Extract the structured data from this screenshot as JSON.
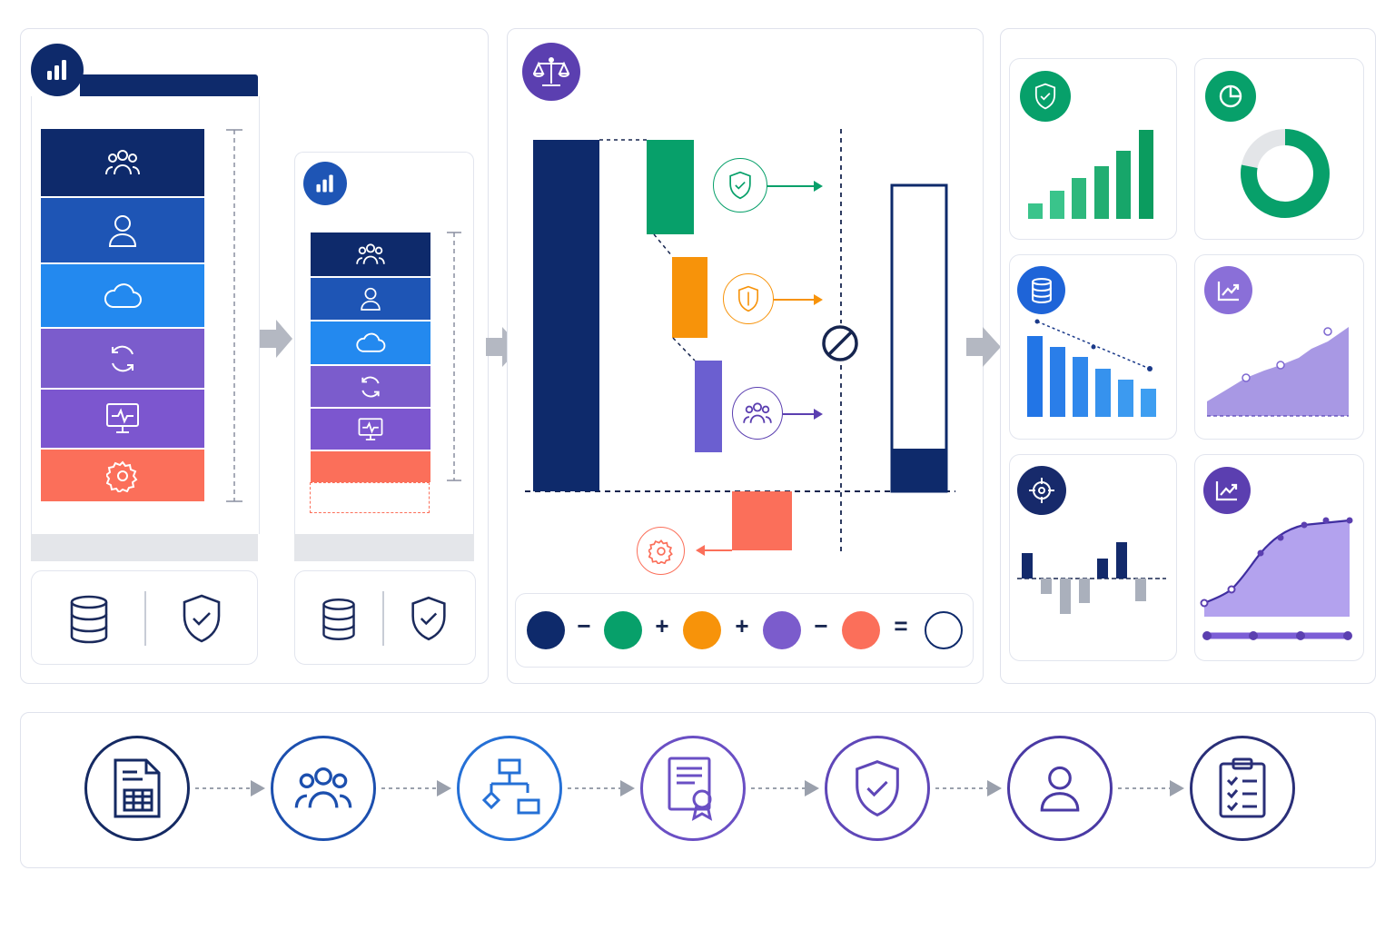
{
  "colors": {
    "navy": "#0e2a6b",
    "blue": "#1e55b5",
    "sky": "#2389ef",
    "violet": "#7b5ccc",
    "purple": "#7c56cf",
    "coral": "#fb6f5a",
    "green": "#07a06a",
    "orange": "#f7930a",
    "lavender": "#6b5fd0",
    "gray": "#e4e6ea",
    "arrow_gray": "#b4b8c2"
  },
  "left_panel": {
    "stack_layers": [
      {
        "icon": "users-icon",
        "color": "#0e2a6b"
      },
      {
        "icon": "user-icon",
        "color": "#1e55b5"
      },
      {
        "icon": "cloud-icon",
        "color": "#2389ef"
      },
      {
        "icon": "sync-icon",
        "color": "#7b5ccc"
      },
      {
        "icon": "monitor-pulse-icon",
        "color": "#7c56cf"
      },
      {
        "icon": "gear-icon",
        "color": "#fb6f5a"
      }
    ],
    "footer_icons": [
      "database-icon",
      "shield-check-icon"
    ]
  },
  "middle_panel": {
    "header_icon": "balance-scale-icon",
    "waterfall_markers": [
      "shield-check-icon",
      "shield-icon",
      "users-icon",
      "gear-icon"
    ],
    "blocked_icon": "no-entry-icon",
    "equation": {
      "operators": [
        "−",
        "+",
        "+",
        "−",
        "="
      ],
      "dot_colors": [
        "#0e2a6b",
        "#07a06a",
        "#f7930a",
        "#7b5ccc",
        "#fb6f5a",
        "#ffffff"
      ]
    }
  },
  "right_panel": {
    "cards": [
      {
        "icon": "shield-check-icon",
        "chart": "bar-growth"
      },
      {
        "icon": "pie-chart-icon",
        "chart": "donut"
      },
      {
        "icon": "database-icon",
        "chart": "bar-decline"
      },
      {
        "icon": "trend-icon",
        "chart": "area"
      },
      {
        "icon": "target-icon",
        "chart": "variance-bars"
      },
      {
        "icon": "trend-icon",
        "chart": "s-curve"
      }
    ],
    "donut_fraction": 0.78
  },
  "process_flow": {
    "steps": [
      {
        "icon": "spreadsheet-icon",
        "color": "#152a63"
      },
      {
        "icon": "users-icon",
        "color": "#1c4fae"
      },
      {
        "icon": "org-chart-icon",
        "color": "#2570d6"
      },
      {
        "icon": "certificate-icon",
        "color": "#6a4fc4"
      },
      {
        "icon": "shield-check-icon",
        "color": "#5f47b8"
      },
      {
        "icon": "user-icon",
        "color": "#4a3aa4"
      },
      {
        "icon": "clipboard-check-icon",
        "color": "#2a2f78"
      }
    ]
  }
}
